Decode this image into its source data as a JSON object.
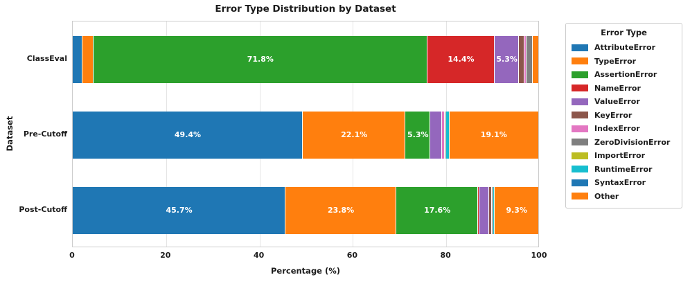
{
  "title": "Error Type Distribution by Dataset",
  "axes": {
    "x_label": "Percentage (%)",
    "y_label": "Dataset",
    "x_ticks": [
      "0",
      "20",
      "40",
      "60",
      "80",
      "100"
    ]
  },
  "legend": {
    "title": "Error Type"
  },
  "chart_data": {
    "type": "bar",
    "orientation": "horizontal",
    "stacked": true,
    "title": "Error Type Distribution by Dataset",
    "xlabel": "Percentage (%)",
    "ylabel": "Dataset",
    "xlim": [
      0,
      100
    ],
    "grid": "vertical",
    "legend_position": "right",
    "categories": [
      "ClassEval",
      "Pre-Cutoff",
      "Post-Cutoff"
    ],
    "series": [
      {
        "name": "AttributeError",
        "color": "#1f77b4",
        "values": [
          2.1,
          49.4,
          45.7
        ]
      },
      {
        "name": "TypeError",
        "color": "#ff7f0e",
        "values": [
          2.3,
          22.1,
          23.8
        ]
      },
      {
        "name": "AssertionError",
        "color": "#2ca02c",
        "values": [
          71.8,
          5.3,
          17.6
        ]
      },
      {
        "name": "NameError",
        "color": "#d62728",
        "values": [
          14.4,
          0,
          0.3
        ]
      },
      {
        "name": "ValueError",
        "color": "#9467bd",
        "values": [
          5.3,
          2.5,
          2.1
        ]
      },
      {
        "name": "KeyError",
        "color": "#8c564b",
        "values": [
          1.1,
          0,
          0.6
        ]
      },
      {
        "name": "IndexError",
        "color": "#e377c2",
        "values": [
          0.4,
          0.6,
          0
        ]
      },
      {
        "name": "ZeroDivisionError",
        "color": "#7f7f7f",
        "values": [
          1.4,
          0.3,
          0.2
        ]
      },
      {
        "name": "ImportError",
        "color": "#bcbd22",
        "values": [
          0,
          0,
          0
        ]
      },
      {
        "name": "RuntimeError",
        "color": "#17becf",
        "values": [
          0,
          0.7,
          0.4
        ]
      },
      {
        "name": "SyntaxError",
        "color": "#1f77b4",
        "values": [
          0,
          0,
          0
        ]
      },
      {
        "name": "Other",
        "color": "#ff7f0e",
        "values": [
          1.2,
          19.1,
          9.3
        ]
      }
    ],
    "data_labels": {
      "format": "{value}%",
      "min_pct_to_show": 5,
      "color": "#ffffff"
    }
  }
}
